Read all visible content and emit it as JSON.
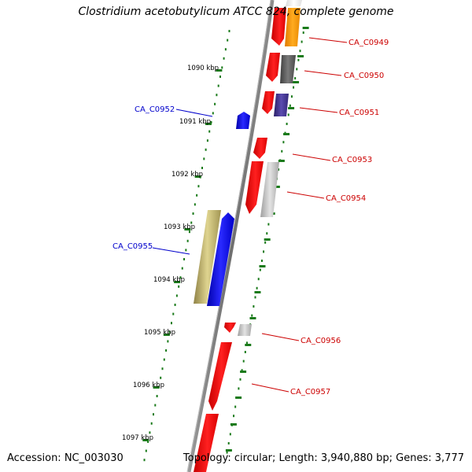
{
  "title": "Clostridium acetobutylicum ATCC 824, complete genome",
  "footer": {
    "accession": "Accession: NC_003030",
    "topology": "Topology: circular; Length: 3,940,880 bp; Genes: 3,777"
  },
  "ruler_labels": [
    {
      "id": "kbp-1090",
      "text": "1090 kbp"
    },
    {
      "id": "kbp-1091",
      "text": "1091 kbp"
    },
    {
      "id": "kbp-1092",
      "text": "1092 kbp"
    },
    {
      "id": "kbp-1093",
      "text": "1093 kbp"
    },
    {
      "id": "kbp-1094",
      "text": "1094 kbp"
    },
    {
      "id": "kbp-1095",
      "text": "1095 kbp"
    },
    {
      "id": "kbp-1096",
      "text": "1096 kbp"
    },
    {
      "id": "kbp-1097",
      "text": "1097 kbp"
    }
  ],
  "gene_labels": [
    {
      "id": "CA_C0949",
      "text": "CA_C0949",
      "color": "#cc0000"
    },
    {
      "id": "CA_C0950",
      "text": "CA_C0950",
      "color": "#cc0000"
    },
    {
      "id": "CA_C0951",
      "text": "CA_C0951",
      "color": "#cc0000"
    },
    {
      "id": "CA_C0952",
      "text": "CA_C0952",
      "color": "#0000cc"
    },
    {
      "id": "CA_C0953",
      "text": "CA_C0953",
      "color": "#cc0000"
    },
    {
      "id": "CA_C0954",
      "text": "CA_C0954",
      "color": "#cc0000"
    },
    {
      "id": "CA_C0955",
      "text": "CA_C0955",
      "color": "#0000cc"
    },
    {
      "id": "CA_C0956",
      "text": "CA_C0956",
      "color": "#cc0000"
    },
    {
      "id": "CA_C0957",
      "text": "CA_C0957",
      "color": "#cc0000"
    }
  ],
  "colors": {
    "backbone": "#7a7a7a",
    "ruler": "#1a7a1a",
    "red_gene": "#ee1111",
    "blue_gene": "#1111ee",
    "orange_gene": "#ff9900",
    "dark_gray_gene": "#555555",
    "purple_gene": "#3d2f8f",
    "light_gray_gene": "#bdbdbd",
    "olive_gene": "#c8bb73"
  }
}
